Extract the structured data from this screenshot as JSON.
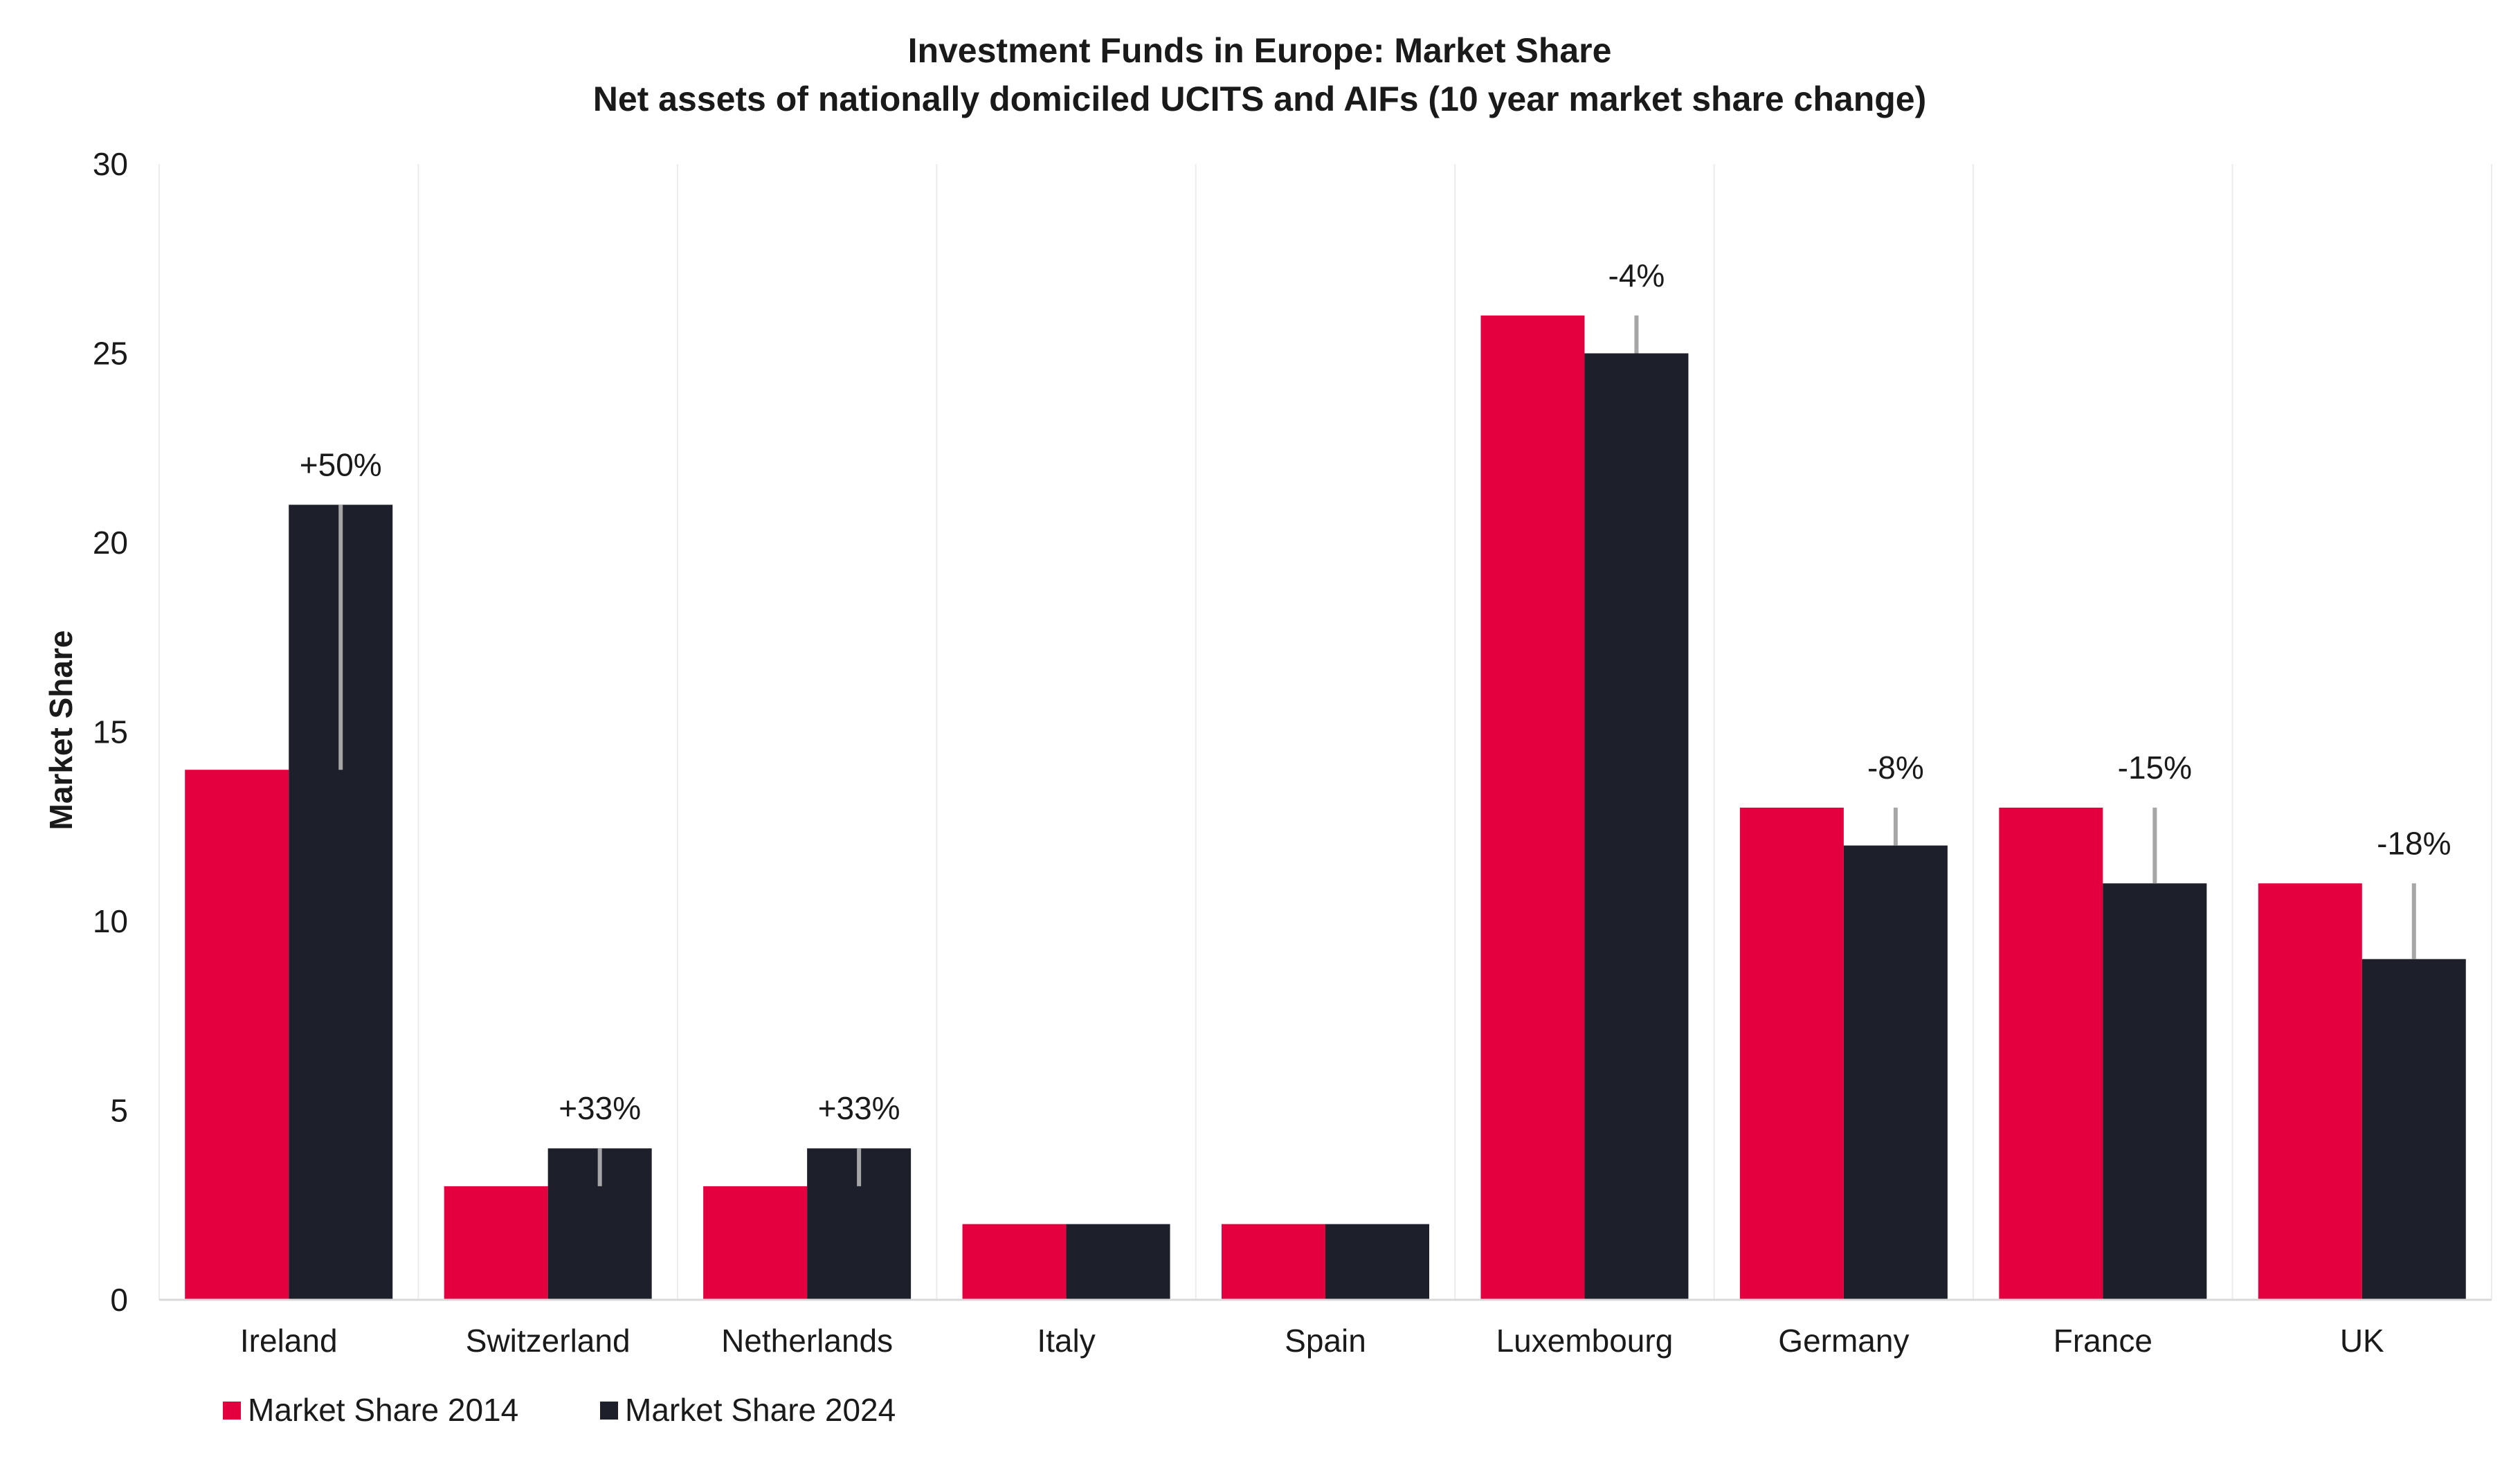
{
  "chart_data": {
    "type": "bar",
    "title": "Investment Funds in Europe: Market Share",
    "subtitle": "Net assets of nationally domiciled UCITS and AIFs (10 year market share change)",
    "xlabel": "",
    "ylabel": "Market Share",
    "ylim": [
      0,
      30
    ],
    "yticks": [
      0,
      5,
      10,
      15,
      20,
      25,
      30
    ],
    "grid": "vertical category separators",
    "legend_position": "bottom-left",
    "categories": [
      "Ireland",
      "Switzerland",
      "Netherlands",
      "Italy",
      "Spain",
      "Luxembourg",
      "Germany",
      "France",
      "UK"
    ],
    "series": [
      {
        "name": "Market Share 2014",
        "color": "#e4003e",
        "values": [
          14,
          3,
          3,
          2,
          2,
          26,
          13,
          13,
          11
        ]
      },
      {
        "name": "Market Share 2024",
        "color": "#1d1f2b",
        "values": [
          21,
          4,
          4,
          2,
          2,
          25,
          12,
          11,
          9
        ]
      }
    ],
    "annotations": [
      "+50%",
      "+33%",
      "+33%",
      "",
      "",
      "-4%",
      "-8%",
      "-15%",
      "-18%"
    ],
    "error_bar_color": "#a6a6a6"
  }
}
